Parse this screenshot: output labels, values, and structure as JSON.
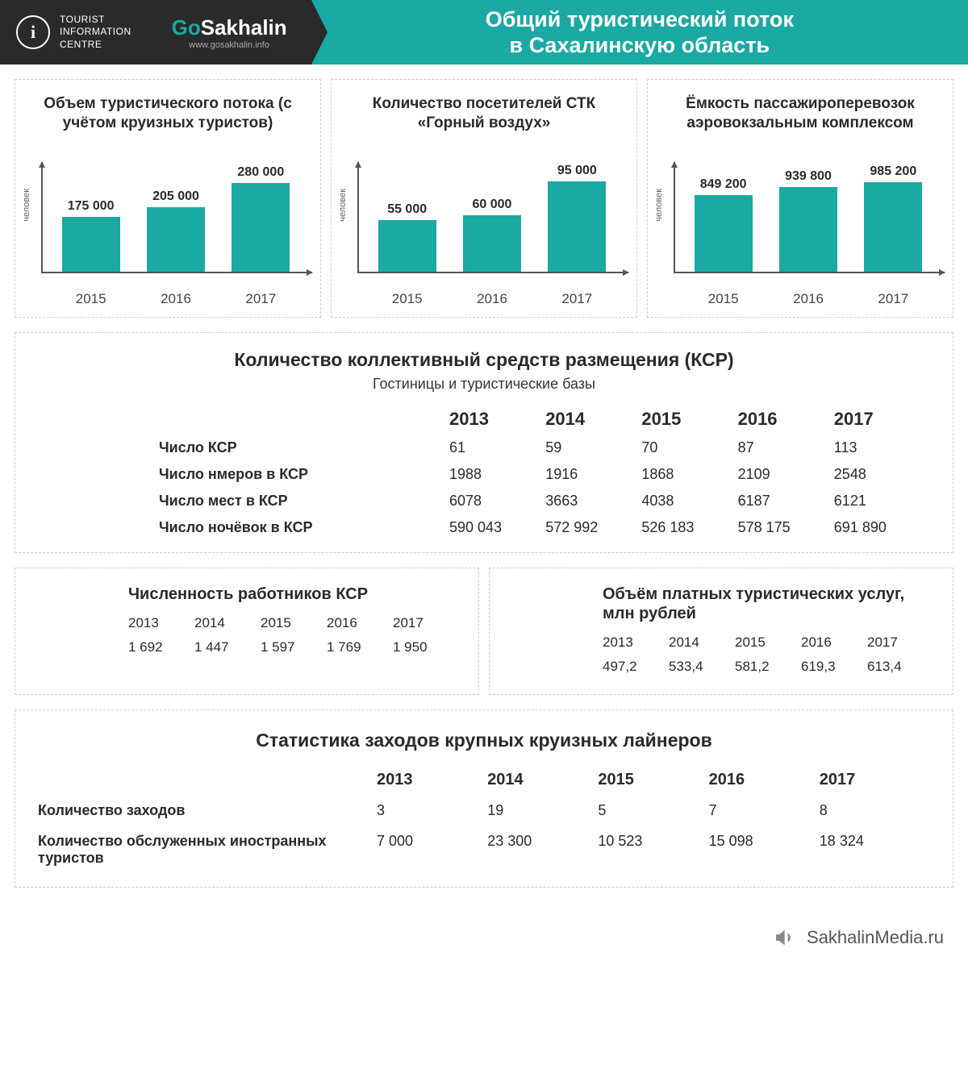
{
  "header": {
    "tic_label": "TOURIST\nINFORMATION\nCENTRE",
    "brand_go": "Go",
    "brand_name": "Sakhalin",
    "brand_url": "www.gosakhalin.info",
    "main_title": "Общий туристический поток\nв Сахалинскую область"
  },
  "style": {
    "accent": "#1aa9a3",
    "dark": "#2a2a2a",
    "border": "#cccccc",
    "text": "#2a2a2a"
  },
  "charts": [
    {
      "title": "Объем туристического потока (с учётом круизных туристов)",
      "y_label": "человек",
      "years": [
        "2015",
        "2016",
        "2017"
      ],
      "values": [
        175000,
        205000,
        280000
      ],
      "labels": [
        "175 000",
        "205 000",
        "280 000"
      ],
      "ymax": 300000,
      "bar_color": "#1aa9a3"
    },
    {
      "title": "Количество посетителей СТК «Горный воздух»",
      "y_label": "человек",
      "years": [
        "2015",
        "2016",
        "2017"
      ],
      "values": [
        55000,
        60000,
        95000
      ],
      "labels": [
        "55 000",
        "60 000",
        "95 000"
      ],
      "ymax": 100000,
      "bar_color": "#1aa9a3"
    },
    {
      "title": "Ёмкость пассажироперевозок аэровокзальным комплексом",
      "y_label": "человек",
      "years": [
        "2015",
        "2016",
        "2017"
      ],
      "values": [
        849200,
        939800,
        985200
      ],
      "labels": [
        "849 200",
        "939 800",
        "985 200"
      ],
      "ymax": 1050000,
      "bar_color": "#1aa9a3"
    }
  ],
  "ksr": {
    "title": "Количество коллективный средств размещения (КСР)",
    "subtitle": "Гостиницы и туристические базы",
    "years": [
      "2013",
      "2014",
      "2015",
      "2016",
      "2017"
    ],
    "rows": [
      {
        "label": "Число КСР",
        "cells": [
          "61",
          "59",
          "70",
          "87",
          "113"
        ]
      },
      {
        "label": "Число нмеров в КСР",
        "cells": [
          "1988",
          "1916",
          "1868",
          "2109",
          "2548"
        ]
      },
      {
        "label": "Число мест в КСР",
        "cells": [
          "6078",
          "3663",
          "4038",
          "6187",
          "6121"
        ]
      },
      {
        "label": "Число ночёвок в КСР",
        "cells": [
          "590 043",
          "572 992",
          "526 183",
          "578 175",
          "691 890"
        ]
      }
    ]
  },
  "workers": {
    "title": "Численность работников КСР",
    "years": [
      "2013",
      "2014",
      "2015",
      "2016",
      "2017"
    ],
    "values": [
      "1 692",
      "1 447",
      "1 597",
      "1 769",
      "1 950"
    ]
  },
  "services": {
    "title": "Объём платных туристических услуг, млн рублей",
    "years": [
      "2013",
      "2014",
      "2015",
      "2016",
      "2017"
    ],
    "values": [
      "497,2",
      "533,4",
      "581,2",
      "619,3",
      "613,4"
    ]
  },
  "cruise": {
    "title": "Статистика заходов крупных круизных лайнеров",
    "years": [
      "2013",
      "2014",
      "2015",
      "2016",
      "2017"
    ],
    "rows": [
      {
        "label": "Количество заходов",
        "cells": [
          "3",
          "19",
          "5",
          "7",
          "8"
        ]
      },
      {
        "label": "Количество обслуженных иностранных туристов",
        "cells": [
          "7 000",
          "23 300",
          "10 523",
          "15 098",
          "18 324"
        ]
      }
    ]
  },
  "footer": {
    "credit": "SakhalinMedia.ru"
  }
}
